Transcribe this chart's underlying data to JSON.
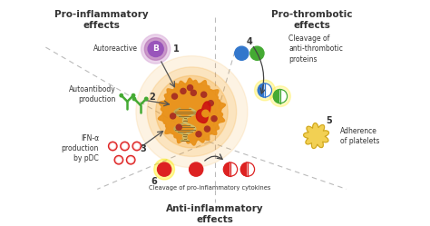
{
  "bg_color": "#ffffff",
  "title_pro_inflam": "Pro-inflammatory\neffects",
  "title_pro_thromb": "Pro-thrombotic\neffects",
  "title_anti_inflam": "Anti-inflammatory\neffects",
  "label1": "Autoreactive",
  "label2": "Autoantibody\nproduction",
  "label3": "IFN-α\nproduction\nby pDC",
  "label4": "Cleavage of\nanti-thrombotic\nproteins",
  "label5": "Adherence\nof platelets",
  "label6": "Cleavage of pro-inflammatory cytokines",
  "num1": "1",
  "num2": "2",
  "num3": "3",
  "num4": "4",
  "num5": "5",
  "num6": "6",
  "B_label": "B",
  "purple_outer": "#d4a0d4",
  "purple_inner": "#9955bb",
  "purple_mid": "#b877b8",
  "green_color": "#44aa33",
  "blue_color": "#3377cc",
  "red_color": "#dd2222",
  "red_light": "#ee5555",
  "orange_glow": "#f5a020",
  "orange_cell": "#e89018",
  "yellow_platelet": "#f0c030",
  "dark_text": "#333333",
  "dashed_color": "#bbbbbb",
  "arrow_color": "#555555"
}
